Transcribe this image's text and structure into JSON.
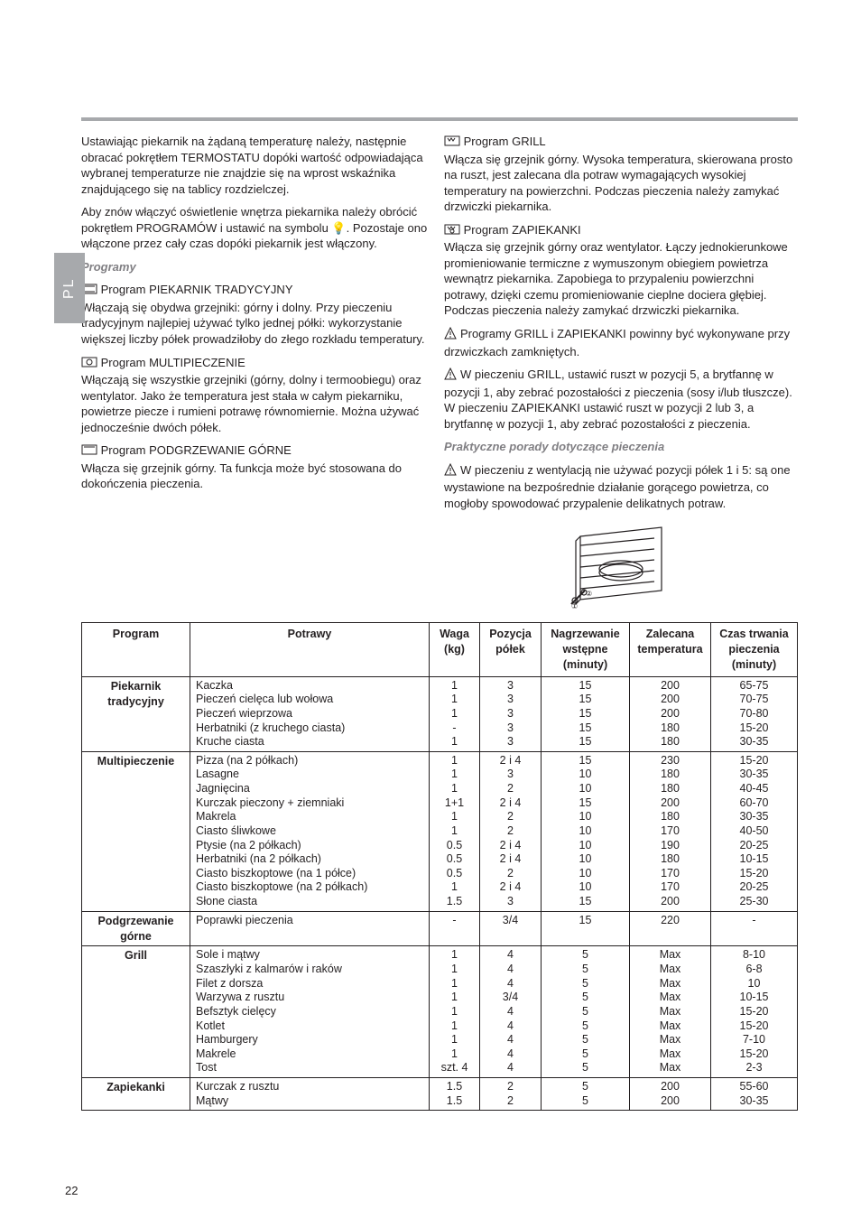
{
  "side_tab": "PL",
  "left_col": {
    "p1": "Ustawiając piekarnik na żądaną temperaturę należy, następnie obracać pokrętłem TERMOSTATU dopóki wartość odpowiadająca wybranej temperaturze nie znajdzie się na wprost wskaźnika znajdującego się na tablicy rozdzielczej.",
    "p2": "Aby znów włączyć oświetlenie wnętrza piekarnika należy obrócić pokrętłem PROGRAMÓW i ustawić na symbolu 💡. Pozostaje ono włączone przez cały czas dopóki piekarnik jest włączony.",
    "heading": "Programy",
    "prog1_t": "Program PIEKARNIK TRADYCYJNY",
    "prog1_b": "Włączają się obydwa grzejniki: górny i dolny. Przy pieczeniu tradycyjnym najlepiej używać tylko jednej półki: wykorzystanie większej liczby półek prowadziłoby do złego rozkładu temperatury.",
    "prog2_t": "Program MULTIPIECZENIE",
    "prog2_b": "Włączają się wszystkie grzejniki (górny, dolny i termoobiegu) oraz wentylator. Jako że temperatura jest stała w całym piekarniku, powietrze piecze i rumieni potrawę równomiernie. Można używać jednocześnie dwóch półek.",
    "prog3_t": "Program PODGRZEWANIE GÓRNE",
    "prog3_b": "Włącza się grzejnik górny. Ta funkcja może być stosowana do dokończenia pieczenia."
  },
  "right_col": {
    "prog4_t": "Program GRILL",
    "prog4_b": "Włącza się grzejnik górny. Wysoka temperatura, skierowana prosto na ruszt, jest zalecana dla potraw wymagających wysokiej temperatury na powierzchni. Podczas pieczenia należy zamykać drzwiczki piekarnika.",
    "prog5_t": "Program ZAPIEKANKI",
    "prog5_b": "Włącza się grzejnik górny oraz wentylator. Łączy jednokierunkowe promieniowanie termiczne z wymuszonym obiegiem powietrza wewnątrz piekarnika. Zapobiega to przypaleniu powierzchni potrawy, dzięki czemu promieniowanie cieplne dociera głębiej. Podczas pieczenia należy zamykać drzwiczki piekarnika.",
    "warn1": "Programy GRILL i ZAPIEKANKI powinny być wykonywane przy drzwiczkach zamkniętych.",
    "warn2": "W pieczeniu GRILL, ustawić ruszt w pozycji 5, a brytfannę w pozycji 1, aby zebrać pozostałości z pieczenia (sosy i/lub tłuszcze). W pieczeniu ZAPIEKANKI ustawić ruszt w pozycji 2 lub 3, a brytfannę w pozycji 1, aby zebrać pozostałości z pieczenia.",
    "tips_h": "Praktyczne porady dotyczące pieczenia",
    "tips_b": "W pieczeniu z wentylacją nie używać pozycji półek 1 i 5: są one wystawione na bezpośrednie działanie gorącego powietrza, co mogłoby spowodować przypalenie delikatnych potraw."
  },
  "table": {
    "headers": [
      "Program",
      "Potrawy",
      "Waga (kg)",
      "Pozycja półek",
      "Nagrzewanie wstępne (minuty)",
      "Zalecana temperatura",
      "Czas trwania pieczenia (minuty)"
    ],
    "groups": [
      {
        "program": "Piekarnik tradycyjny",
        "rows": [
          [
            "Kaczka",
            "1",
            "3",
            "15",
            "200",
            "65-75"
          ],
          [
            "Pieczeń cielęca lub wołowa",
            "1",
            "3",
            "15",
            "200",
            "70-75"
          ],
          [
            "Pieczeń wieprzowa",
            "1",
            "3",
            "15",
            "200",
            "70-80"
          ],
          [
            "Herbatniki (z kruchego ciasta)",
            "-",
            "3",
            "15",
            "180",
            "15-20"
          ],
          [
            "Kruche ciasta",
            "1",
            "3",
            "15",
            "180",
            "30-35"
          ]
        ]
      },
      {
        "program": "Multipieczenie",
        "rows": [
          [
            "Pizza (na 2 półkach)",
            "1",
            "2 i 4",
            "15",
            "230",
            "15-20"
          ],
          [
            "Lasagne",
            "1",
            "3",
            "10",
            "180",
            "30-35"
          ],
          [
            "Jagnięcina",
            "1",
            "2",
            "10",
            "180",
            "40-45"
          ],
          [
            "Kurczak pieczony + ziemniaki",
            "1+1",
            "2 i 4",
            "15",
            "200",
            "60-70"
          ],
          [
            "Makrela",
            "1",
            "2",
            "10",
            "180",
            "30-35"
          ],
          [
            "Ciasto śliwkowe",
            "1",
            "2",
            "10",
            "170",
            "40-50"
          ],
          [
            "Ptysie (na 2 półkach)",
            "0.5",
            "2 i 4",
            "10",
            "190",
            "20-25"
          ],
          [
            "Herbatniki (na 2 półkach)",
            "0.5",
            "2 i 4",
            "10",
            "180",
            "10-15"
          ],
          [
            "Ciasto biszkoptowe (na 1 półce)",
            "0.5",
            "2",
            "10",
            "170",
            "15-20"
          ],
          [
            "Ciasto biszkoptowe (na 2 półkach)",
            "1",
            "2 i 4",
            "10",
            "170",
            "20-25"
          ],
          [
            "Słone ciasta",
            "1.5",
            "3",
            "15",
            "200",
            "25-30"
          ]
        ]
      },
      {
        "program": "Podgrzewanie górne",
        "rows": [
          [
            "Poprawki pieczenia",
            "-",
            "3/4",
            "15",
            "220",
            "-"
          ]
        ]
      },
      {
        "program": "Grill",
        "rows": [
          [
            "Sole i mątwy",
            "1",
            "4",
            "5",
            "Max",
            "8-10"
          ],
          [
            "Szaszłyki z kalmarów i raków",
            "1",
            "4",
            "5",
            "Max",
            "6-8"
          ],
          [
            "Filet z dorsza",
            "1",
            "4",
            "5",
            "Max",
            "10"
          ],
          [
            "Warzywa z rusztu",
            "1",
            "3/4",
            "5",
            "Max",
            "10-15"
          ],
          [
            "Befsztyk cielęcy",
            "1",
            "4",
            "5",
            "Max",
            "15-20"
          ],
          [
            "Kotlet",
            "1",
            "4",
            "5",
            "Max",
            "15-20"
          ],
          [
            "Hamburgery",
            "1",
            "4",
            "5",
            "Max",
            "7-10"
          ],
          [
            "Makrele",
            "1",
            "4",
            "5",
            "Max",
            "15-20"
          ],
          [
            "Tost",
            "szt. 4",
            "4",
            "5",
            "Max",
            "2-3"
          ]
        ]
      },
      {
        "program": "Zapiekanki",
        "rows": [
          [
            "Kurczak z rusztu",
            "1.5",
            "2",
            "5",
            "200",
            "55-60"
          ],
          [
            "Mątwy",
            "1.5",
            "2",
            "5",
            "200",
            "30-35"
          ]
        ]
      }
    ]
  },
  "page_number": "22"
}
